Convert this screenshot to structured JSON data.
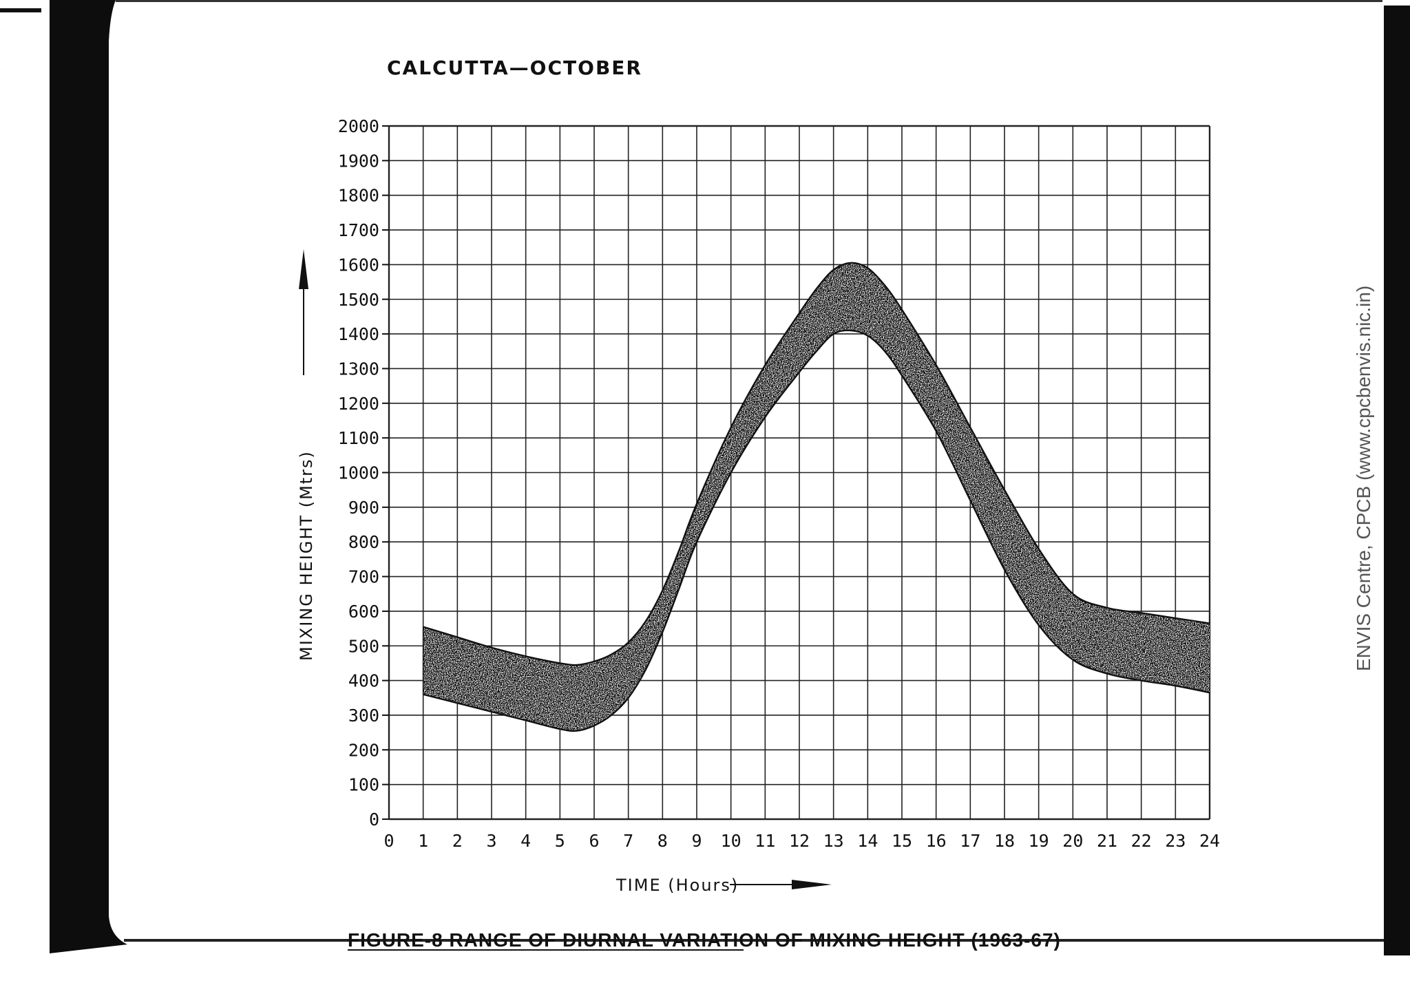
{
  "chart_data": {
    "type": "area",
    "title": "CALCUTTA—OCTOBER",
    "xlabel": "TIME (Hours)",
    "ylabel": "MIXING HEIGHT (Mtrs)",
    "xlim": [
      0,
      24
    ],
    "ylim": [
      0,
      2000
    ],
    "x_ticks": [
      "0",
      "1",
      "2",
      "3",
      "4",
      "5",
      "6",
      "7",
      "8",
      "9",
      "10",
      "11",
      "12",
      "13",
      "14",
      "15",
      "16",
      "17",
      "18",
      "19",
      "20",
      "21",
      "22",
      "23",
      "24"
    ],
    "y_ticks": [
      "0",
      "100",
      "200",
      "300",
      "400",
      "500",
      "600",
      "700",
      "800",
      "900",
      "1000",
      "1100",
      "1200",
      "1300",
      "1400",
      "1500",
      "1600",
      "1700",
      "1800",
      "1900",
      "2000"
    ],
    "grid": true,
    "series": [
      {
        "name": "upper bound",
        "x": [
          1,
          2,
          3,
          4,
          5,
          5.5,
          6,
          6.5,
          7,
          7.5,
          8,
          8.5,
          9,
          10,
          11,
          12,
          12.5,
          13,
          13.5,
          14,
          14.5,
          15,
          16,
          17,
          18,
          19,
          20,
          21,
          22,
          23,
          24
        ],
        "values": [
          555,
          525,
          495,
          470,
          450,
          445,
          455,
          475,
          510,
          570,
          660,
          780,
          910,
          1130,
          1310,
          1460,
          1530,
          1585,
          1605,
          1590,
          1540,
          1470,
          1310,
          1130,
          950,
          780,
          650,
          610,
          595,
          580,
          565
        ]
      },
      {
        "name": "lower bound",
        "x": [
          1,
          2,
          3,
          4,
          5,
          5.5,
          6,
          6.5,
          7,
          7.5,
          8,
          8.5,
          9,
          10,
          11,
          12,
          12.5,
          13,
          13.5,
          14,
          14.5,
          15,
          16,
          17,
          18,
          19,
          20,
          21,
          22,
          23,
          24
        ],
        "values": [
          360,
          335,
          310,
          285,
          260,
          255,
          270,
          300,
          350,
          430,
          540,
          670,
          800,
          1000,
          1160,
          1290,
          1350,
          1400,
          1410,
          1395,
          1350,
          1280,
          1120,
          920,
          720,
          560,
          460,
          420,
          400,
          385,
          365
        ]
      }
    ]
  },
  "page": {
    "title": "CALCUTTA—OCTOBER",
    "caption": "FIGURE-8 RANGE OF DIURNAL VARIATION OF MIXING HEIGHT (1963-67)",
    "watermark": "ENVIS Centre, CPCB (www.cpcbenvis.nic.in)"
  }
}
